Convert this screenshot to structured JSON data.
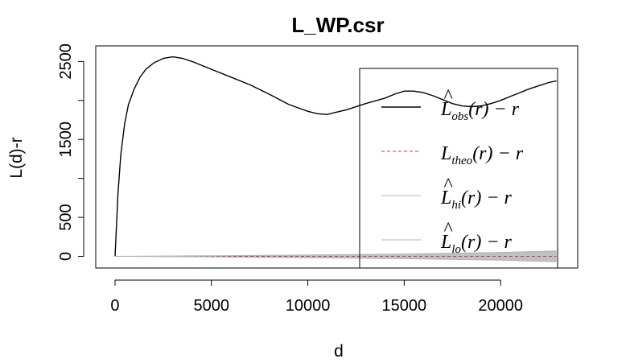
{
  "chart_data": {
    "type": "line",
    "title": "L_WP.csr",
    "xlabel": "d",
    "ylabel": "L(d)-r",
    "xlim": [
      -1000,
      24000
    ],
    "ylim": [
      -150,
      2700
    ],
    "x_ticks": [
      0,
      5000,
      10000,
      15000,
      20000
    ],
    "x_tick_labels": [
      "0",
      "5000",
      "10000",
      "15000",
      "20000"
    ],
    "y_ticks": [
      0,
      500,
      1000,
      1500,
      2000,
      2500
    ],
    "y_tick_labels": [
      "0",
      "500",
      "1500",
      "2500"
    ],
    "y_tick_labeled": [
      0,
      500,
      1500,
      2500
    ],
    "legend_position": "right",
    "series": [
      {
        "key": "obs",
        "name": "L̂obs(r) − r",
        "legend": {
          "hat": true,
          "base": "L",
          "sub": "obs",
          "suffix": "(r) − r"
        },
        "color": "#000000",
        "style": "solid",
        "x": [
          0,
          150,
          300,
          500,
          700,
          1000,
          1300,
          1600,
          2000,
          2500,
          3000,
          3500,
          4000,
          5000,
          6000,
          7000,
          8000,
          9000,
          10000,
          10500,
          11000,
          12000,
          13000,
          14000,
          14500,
          15000,
          15500,
          16000,
          16500,
          17000,
          17500,
          18000,
          18500,
          19000,
          19500,
          20000,
          20500,
          21000,
          21500,
          22000,
          22500,
          22900
        ],
        "y": [
          0,
          800,
          1300,
          1700,
          1950,
          2150,
          2300,
          2400,
          2480,
          2540,
          2560,
          2540,
          2500,
          2400,
          2300,
          2200,
          2080,
          1950,
          1860,
          1830,
          1820,
          1880,
          1960,
          2030,
          2080,
          2120,
          2120,
          2100,
          2060,
          2010,
          1960,
          1930,
          1920,
          1930,
          1960,
          2000,
          2050,
          2100,
          2150,
          2190,
          2230,
          2250
        ]
      },
      {
        "key": "theo",
        "name": "Ltheo(r) − r",
        "legend": {
          "hat": false,
          "base": "L",
          "sub": "theo",
          "suffix": "(r) − r"
        },
        "color": "#cc3366",
        "style": "dashed",
        "x": [
          0,
          22900
        ],
        "y": [
          0,
          0
        ]
      },
      {
        "key": "hi",
        "name": "L̂hi(r) − r",
        "legend": {
          "hat": true,
          "base": "L",
          "sub": "hi",
          "suffix": "(r) − r"
        },
        "color": "#b4b4b4",
        "style": "solid",
        "x": [
          0,
          5000,
          10000,
          15000,
          20000,
          22900
        ],
        "y": [
          0,
          8,
          18,
          30,
          50,
          70
        ]
      },
      {
        "key": "lo",
        "name": "L̂lo(r) − r",
        "legend": {
          "hat": true,
          "base": "L",
          "sub": "lo",
          "suffix": "(r) − r"
        },
        "color": "#b4b4b4",
        "style": "solid",
        "x": [
          0,
          5000,
          10000,
          15000,
          20000,
          22900
        ],
        "y": [
          0,
          -8,
          -18,
          -30,
          -50,
          -70
        ]
      }
    ],
    "envelope_color": "#c0c0c0"
  }
}
